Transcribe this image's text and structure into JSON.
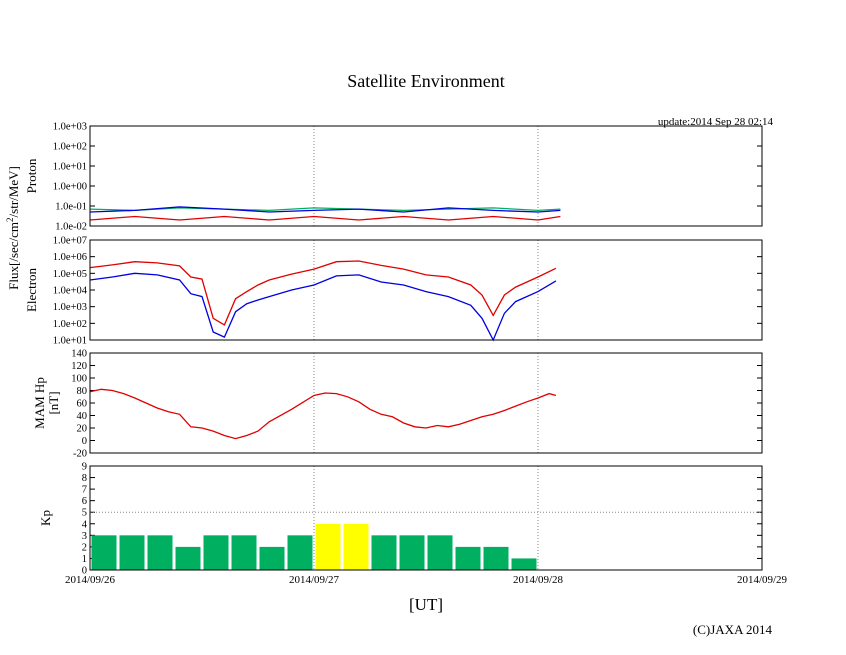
{
  "title": "Satellite Environment",
  "update": "update:2014 Sep 28 02:14",
  "copyright": "(C)JAXA 2014",
  "colors": {
    "red": "#e00000",
    "blue": "#0000e0",
    "green": "#00b060",
    "kp_green": "#00ee00",
    "kp_yellow": "#ffff00"
  },
  "chart_data": [
    {
      "type": "line",
      "panel": "proton",
      "ylabel": "Proton",
      "scale": "log",
      "ylim": [
        0.01,
        1000
      ],
      "yticks": [
        "1.0e-02",
        "1.0e-01",
        "1.0e+00",
        "1.0e+01",
        "1.0e+02",
        "1.0e+03"
      ],
      "series": [
        {
          "color": "red",
          "x": [
            0,
            0.2,
            0.4,
            0.6,
            0.8,
            1.0,
            1.2,
            1.4,
            1.6,
            1.8,
            2.0,
            2.1
          ],
          "values": [
            0.02,
            0.03,
            0.02,
            0.03,
            0.02,
            0.03,
            0.02,
            0.03,
            0.02,
            0.03,
            0.02,
            0.03
          ]
        },
        {
          "color": "green",
          "x": [
            0,
            0.2,
            0.4,
            0.6,
            0.8,
            1.0,
            1.2,
            1.4,
            1.6,
            1.8,
            2.0,
            2.1
          ],
          "values": [
            0.07,
            0.06,
            0.08,
            0.07,
            0.06,
            0.08,
            0.07,
            0.06,
            0.07,
            0.08,
            0.06,
            0.07
          ]
        },
        {
          "color": "blue",
          "x": [
            0,
            0.2,
            0.4,
            0.6,
            0.8,
            1.0,
            1.2,
            1.4,
            1.6,
            1.8,
            2.0,
            2.1
          ],
          "values": [
            0.05,
            0.06,
            0.09,
            0.07,
            0.05,
            0.06,
            0.07,
            0.05,
            0.08,
            0.06,
            0.05,
            0.06
          ]
        }
      ]
    },
    {
      "type": "line",
      "panel": "electron",
      "ylabel": "Electron",
      "scale": "log",
      "ylim": [
        10,
        10000000
      ],
      "yticks": [
        "1.0e+01",
        "1.0e+02",
        "1.0e+03",
        "1.0e+04",
        "1.0e+05",
        "1.0e+06",
        "1.0e+07"
      ],
      "series": [
        {
          "color": "red",
          "x": [
            0,
            0.1,
            0.2,
            0.3,
            0.4,
            0.45,
            0.5,
            0.55,
            0.6,
            0.65,
            0.7,
            0.75,
            0.8,
            0.9,
            1.0,
            1.1,
            1.2,
            1.3,
            1.4,
            1.5,
            1.6,
            1.7,
            1.75,
            1.8,
            1.85,
            1.9,
            2.0,
            2.08
          ],
          "values": [
            220000,
            320000,
            500000,
            420000,
            280000,
            60000,
            45000,
            200,
            80,
            3000,
            8000,
            20000,
            40000,
            90000,
            180000,
            500000,
            550000,
            300000,
            180000,
            80000,
            60000,
            20000,
            5000,
            300,
            5000,
            15000,
            60000,
            200000
          ]
        },
        {
          "color": "blue",
          "x": [
            0,
            0.1,
            0.2,
            0.3,
            0.4,
            0.45,
            0.5,
            0.55,
            0.6,
            0.65,
            0.7,
            0.75,
            0.8,
            0.9,
            1.0,
            1.1,
            1.2,
            1.3,
            1.4,
            1.5,
            1.6,
            1.7,
            1.75,
            1.8,
            1.85,
            1.9,
            2.0,
            2.08
          ],
          "values": [
            40000,
            60000,
            100000,
            80000,
            40000,
            6000,
            4000,
            30,
            15,
            500,
            1500,
            2500,
            4000,
            10000,
            20000,
            70000,
            80000,
            30000,
            20000,
            8000,
            4000,
            1200,
            200,
            10,
            400,
            2000,
            8000,
            35000
          ]
        }
      ]
    },
    {
      "type": "line",
      "panel": "mam",
      "ylabel": "MAM Hp",
      "ylabel2": "[nT]",
      "ylim": [
        -20,
        140
      ],
      "yticks": [
        "-20",
        "0",
        "20",
        "40",
        "60",
        "80",
        "100",
        "120",
        "140"
      ],
      "series": [
        {
          "color": "red",
          "x": [
            0,
            0.05,
            0.1,
            0.15,
            0.2,
            0.25,
            0.3,
            0.35,
            0.4,
            0.45,
            0.5,
            0.55,
            0.6,
            0.65,
            0.7,
            0.75,
            0.8,
            0.9,
            1.0,
            1.05,
            1.1,
            1.15,
            1.2,
            1.25,
            1.3,
            1.35,
            1.4,
            1.45,
            1.5,
            1.55,
            1.6,
            1.65,
            1.7,
            1.75,
            1.8,
            1.85,
            1.9,
            1.95,
            2.0,
            2.05,
            2.08
          ],
          "values": [
            78,
            82,
            80,
            75,
            68,
            60,
            52,
            46,
            42,
            22,
            20,
            15,
            8,
            3,
            8,
            15,
            30,
            50,
            72,
            76,
            75,
            70,
            62,
            50,
            42,
            38,
            28,
            22,
            20,
            24,
            22,
            26,
            32,
            38,
            42,
            48,
            55,
            62,
            68,
            75,
            72
          ]
        }
      ]
    },
    {
      "type": "bar",
      "panel": "kp",
      "ylabel": "Kp",
      "ylim": [
        0,
        9
      ],
      "yticks": [
        "0",
        "1",
        "2",
        "3",
        "4",
        "5",
        "6",
        "7",
        "8",
        "9"
      ],
      "bin_width_days": 0.125,
      "values": [
        3,
        3,
        3,
        2,
        3,
        3,
        2,
        3,
        4,
        4,
        3,
        3,
        3,
        2,
        2,
        1
      ],
      "bar_colors": [
        "green",
        "green",
        "green",
        "green",
        "green",
        "green",
        "green",
        "green",
        "yellow",
        "yellow",
        "green",
        "green",
        "green",
        "green",
        "green",
        "green"
      ]
    }
  ],
  "x_axis": {
    "ticks": [
      "2014/09/26",
      "2014/09/27",
      "2014/09/28",
      "2014/09/29"
    ],
    "label": "[UT]",
    "range_days": [
      0,
      3
    ]
  },
  "shared_ylabel": "Flux[/sec/cm",
  "shared_ylabel_sup": "2",
  "shared_ylabel_tail": "/str/MeV]"
}
